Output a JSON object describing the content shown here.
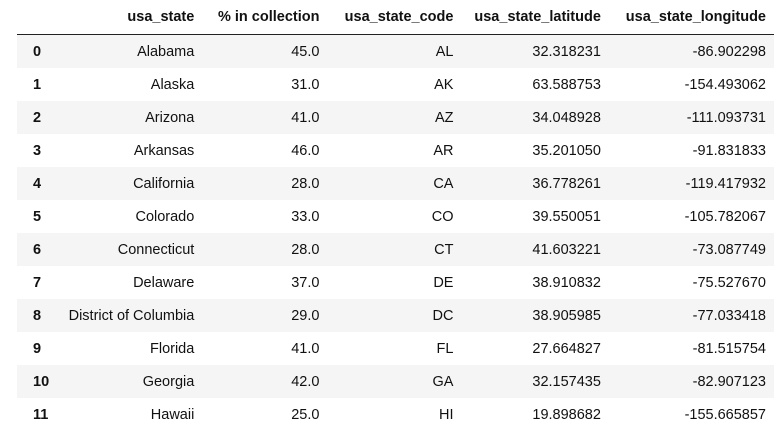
{
  "table": {
    "columns": [
      "",
      "usa_state",
      "% in collection",
      "usa_state_code",
      "usa_state_latitude",
      "usa_state_longitude"
    ],
    "rows": [
      [
        "0",
        "Alabama",
        "45.0",
        "AL",
        "32.318231",
        "-86.902298"
      ],
      [
        "1",
        "Alaska",
        "31.0",
        "AK",
        "63.588753",
        "-154.493062"
      ],
      [
        "2",
        "Arizona",
        "41.0",
        "AZ",
        "34.048928",
        "-111.093731"
      ],
      [
        "3",
        "Arkansas",
        "46.0",
        "AR",
        "35.201050",
        "-91.831833"
      ],
      [
        "4",
        "California",
        "28.0",
        "CA",
        "36.778261",
        "-119.417932"
      ],
      [
        "5",
        "Colorado",
        "33.0",
        "CO",
        "39.550051",
        "-105.782067"
      ],
      [
        "6",
        "Connecticut",
        "28.0",
        "CT",
        "41.603221",
        "-73.087749"
      ],
      [
        "7",
        "Delaware",
        "37.0",
        "DE",
        "38.910832",
        "-75.527670"
      ],
      [
        "8",
        "District of Columbia",
        "29.0",
        "DC",
        "38.905985",
        "-77.033418"
      ],
      [
        "9",
        "Florida",
        "41.0",
        "FL",
        "27.664827",
        "-81.515754"
      ],
      [
        "10",
        "Georgia",
        "42.0",
        "GA",
        "32.157435",
        "-82.907123"
      ],
      [
        "11",
        "Hawaii",
        "25.0",
        "HI",
        "19.898682",
        "-155.665857"
      ]
    ]
  }
}
